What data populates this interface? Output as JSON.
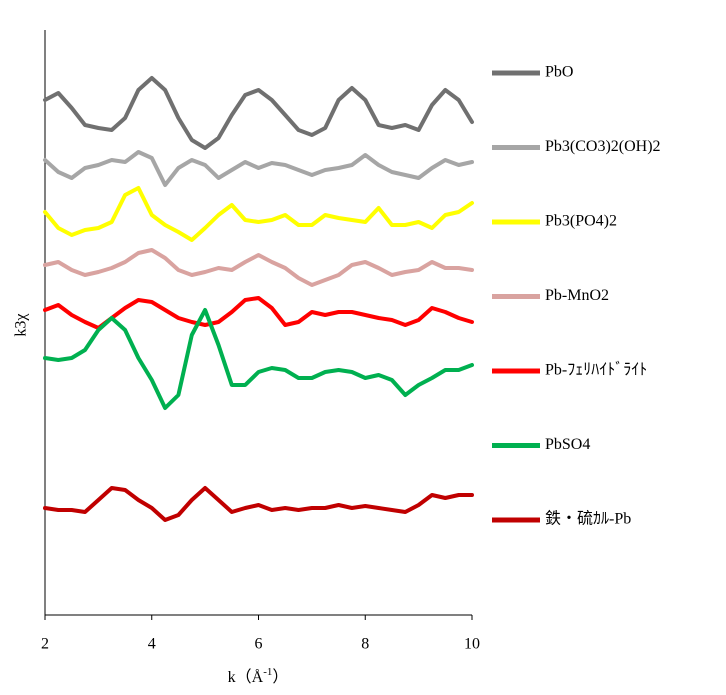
{
  "chart_data": {
    "type": "line",
    "xlabel": {
      "text": "k（Å",
      "sup": "-1",
      "end": "）"
    },
    "ylabel": "k3χ",
    "xlim": [
      2,
      10
    ],
    "xticks": [
      2,
      4,
      6,
      8,
      10
    ],
    "ylim": [
      0,
      585
    ],
    "x": [
      2,
      2.25,
      2.5,
      2.75,
      3,
      3.25,
      3.5,
      3.75,
      4,
      4.25,
      4.5,
      4.75,
      5,
      5.25,
      5.5,
      5.75,
      6,
      6.25,
      6.5,
      6.75,
      7,
      7.25,
      7.5,
      7.75,
      8,
      8.25,
      8.5,
      8.75,
      9,
      9.25,
      9.5,
      9.75,
      10
    ],
    "series": [
      {
        "name": "PbO",
        "color": "#707070",
        "values": [
          515,
          522,
          507,
          490,
          487,
          485,
          497,
          525,
          537,
          525,
          497,
          475,
          467,
          477,
          500,
          520,
          525,
          515,
          500,
          485,
          480,
          487,
          515,
          527,
          515,
          490,
          487,
          490,
          485,
          510,
          525,
          515,
          493
        ]
      },
      {
        "name": "Pb3(CO3)2(OH)2",
        "color": "#a6a6a6",
        "values": [
          455,
          443,
          437,
          447,
          450,
          455,
          453,
          463,
          457,
          430,
          447,
          455,
          450,
          437,
          445,
          453,
          447,
          452,
          450,
          445,
          440,
          445,
          447,
          450,
          460,
          450,
          443,
          440,
          437,
          447,
          455,
          450,
          453
        ]
      },
      {
        "name": "Pb3(PO4)2",
        "color": "#ffff00",
        "values": [
          403,
          387,
          380,
          385,
          387,
          393,
          420,
          427,
          400,
          390,
          383,
          375,
          387,
          400,
          410,
          395,
          393,
          395,
          400,
          390,
          390,
          400,
          397,
          395,
          393,
          407,
          390,
          390,
          393,
          387,
          400,
          403,
          412
        ]
      },
      {
        "name": "Pb-MnO2",
        "color": "#d9a3a0",
        "values": [
          350,
          353,
          345,
          340,
          343,
          347,
          353,
          362,
          365,
          357,
          345,
          340,
          343,
          347,
          345,
          353,
          360,
          353,
          347,
          337,
          330,
          335,
          340,
          350,
          353,
          347,
          340,
          343,
          345,
          353,
          347,
          347,
          345
        ]
      },
      {
        "name": "Pb-ﾌｪﾘﾊｲﾄﾞﾗｲﾄ",
        "color": "#ff0000",
        "values": [
          305,
          310,
          300,
          293,
          287,
          297,
          307,
          315,
          313,
          305,
          297,
          293,
          290,
          293,
          303,
          315,
          317,
          307,
          290,
          293,
          303,
          300,
          303,
          303,
          300,
          297,
          295,
          290,
          295,
          307,
          303,
          297,
          293
        ]
      },
      {
        "name": "PbSO4",
        "color": "#00b050",
        "values": [
          257,
          255,
          257,
          265,
          285,
          297,
          285,
          257,
          235,
          207,
          220,
          280,
          305,
          270,
          230,
          230,
          243,
          247,
          245,
          237,
          237,
          243,
          245,
          243,
          237,
          240,
          235,
          220,
          230,
          237,
          245,
          245,
          250
        ]
      },
      {
        "name": "鉄・硫ｶﾙ-Pb",
        "color": "#c00000",
        "values": [
          107,
          105,
          105,
          103,
          115,
          127,
          125,
          115,
          107,
          95,
          100,
          115,
          127,
          115,
          103,
          107,
          110,
          105,
          107,
          105,
          107,
          107,
          110,
          107,
          109,
          107,
          105,
          103,
          110,
          120,
          117,
          120,
          120
        ]
      }
    ]
  }
}
